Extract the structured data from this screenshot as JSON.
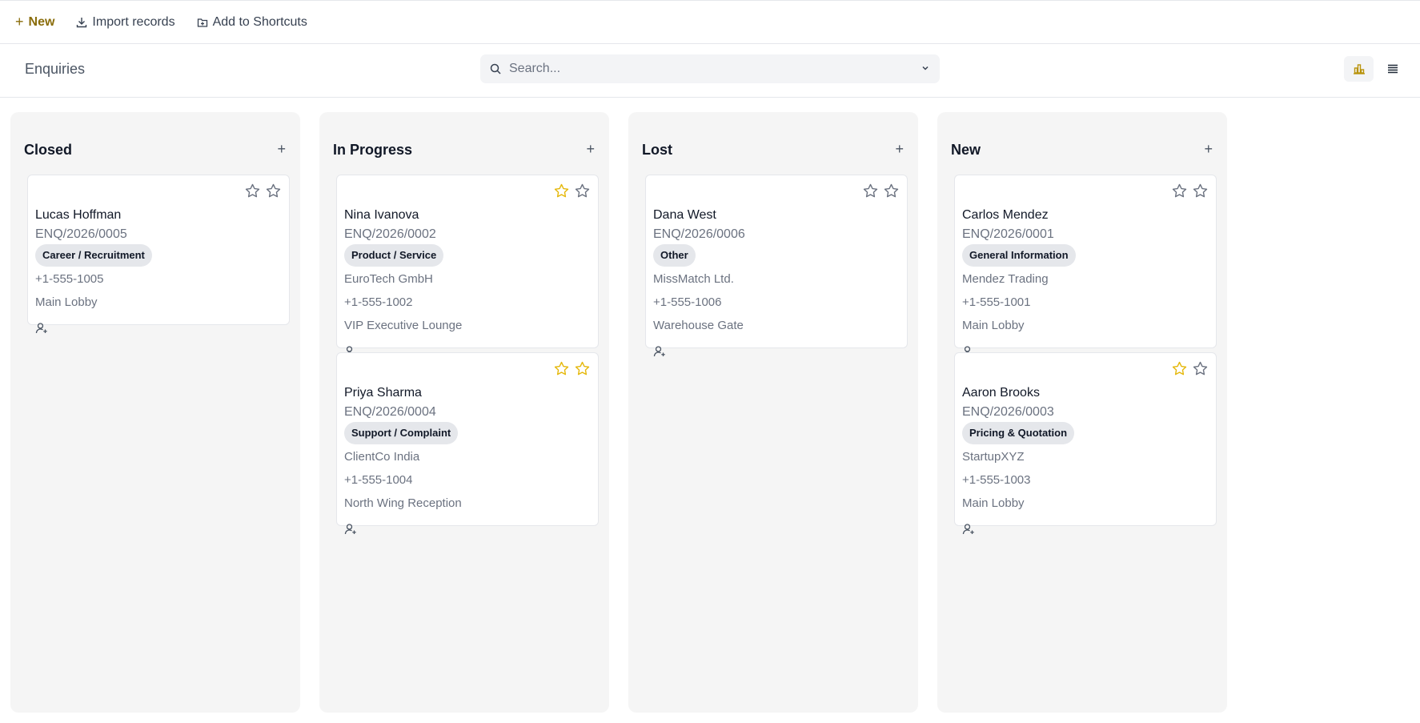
{
  "toolbar": {
    "new_label": "New",
    "import_label": "Import records",
    "shortcut_label": "Add to Shortcuts"
  },
  "header": {
    "title": "Enquiries",
    "search_placeholder": "Search..."
  },
  "colors": {
    "accent": "#8a6d0b",
    "star_active": "#e5b80b",
    "star_inactive": "#6b7280"
  },
  "columns": [
    {
      "title": "Closed",
      "cards": [
        {
          "name": "Lucas Hoffman",
          "id": "ENQ/2026/0005",
          "tag": "Career / Recruitment",
          "lines": [
            "+1-555-1005",
            "Main Lobby"
          ],
          "stars": [
            false,
            false
          ]
        }
      ]
    },
    {
      "title": "In Progress",
      "cards": [
        {
          "name": "Nina Ivanova",
          "id": "ENQ/2026/0002",
          "tag": "Product / Service",
          "lines": [
            "EuroTech GmbH",
            "+1-555-1002",
            "VIP Executive Lounge"
          ],
          "stars": [
            true,
            false
          ]
        },
        {
          "name": "Priya Sharma",
          "id": "ENQ/2026/0004",
          "tag": "Support / Complaint",
          "lines": [
            "ClientCo India",
            "+1-555-1004",
            "North Wing Reception"
          ],
          "stars": [
            true,
            true
          ]
        }
      ]
    },
    {
      "title": "Lost",
      "cards": [
        {
          "name": "Dana West",
          "id": "ENQ/2026/0006",
          "tag": "Other",
          "lines": [
            "MissMatch Ltd.",
            "+1-555-1006",
            "Warehouse Gate"
          ],
          "stars": [
            false,
            false
          ]
        }
      ]
    },
    {
      "title": "New",
      "cards": [
        {
          "name": "Carlos Mendez",
          "id": "ENQ/2026/0001",
          "tag": "General Information",
          "lines": [
            "Mendez Trading",
            "+1-555-1001",
            "Main Lobby"
          ],
          "stars": [
            false,
            false
          ]
        },
        {
          "name": "Aaron Brooks",
          "id": "ENQ/2026/0003",
          "tag": "Pricing & Quotation",
          "lines": [
            "StartupXYZ",
            "+1-555-1003",
            "Main Lobby"
          ],
          "stars": [
            true,
            false
          ]
        }
      ]
    }
  ]
}
